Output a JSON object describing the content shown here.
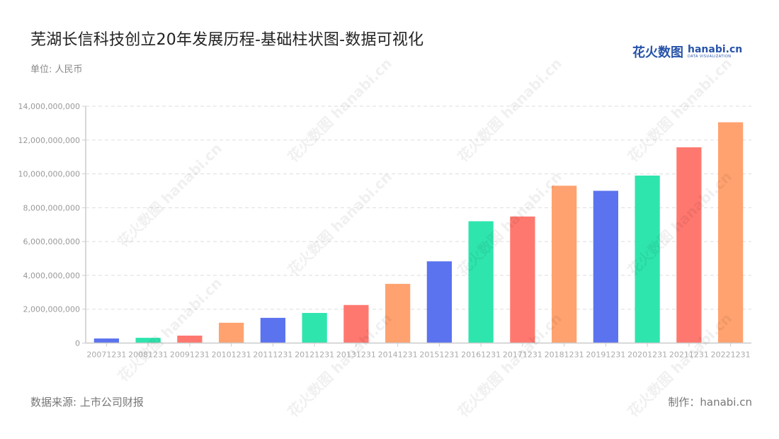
{
  "header": {
    "title": "芜湖长信科技创立20年发展历程-基础柱状图-数据可视化",
    "unit": "单位: 人民币"
  },
  "logo": {
    "cn": "花火数图",
    "en": "hanabi.cn",
    "tagline": "DATA VISUALIZATION"
  },
  "footer": {
    "source": "数据来源: 上市公司财报",
    "credit": "制作：hanabi.cn"
  },
  "watermark": "花火数图 hanabi.cn",
  "colors": [
    "#5B73EE",
    "#2EE5AE",
    "#FF786F",
    "#FFA26F"
  ],
  "chart_data": {
    "type": "bar",
    "title": "芜湖长信科技创立20年发展历程-基础柱状图-数据可视化",
    "xlabel": "",
    "ylabel": "单位: 人民币",
    "ylim": [
      0,
      14000000000
    ],
    "yticks": [
      0,
      2000000000,
      4000000000,
      6000000000,
      8000000000,
      10000000000,
      12000000000,
      14000000000
    ],
    "ytick_labels": [
      "0",
      "2,000,000,000",
      "4,000,000,000",
      "6,000,000,000",
      "8,000,000,000",
      "10,000,000,000",
      "12,000,000,000",
      "14,000,000,000"
    ],
    "grid": true,
    "legend": null,
    "categories": [
      "20071231",
      "20081231",
      "20091231",
      "20101231",
      "20111231",
      "20121231",
      "20131231",
      "20141231",
      "20151231",
      "20161231",
      "20171231",
      "20181231",
      "20191231",
      "20201231",
      "20211231",
      "20221231"
    ],
    "values": [
      270000000,
      310000000,
      440000000,
      1200000000,
      1490000000,
      1780000000,
      2250000000,
      3500000000,
      4830000000,
      7200000000,
      7480000000,
      9300000000,
      9000000000,
      9900000000,
      11570000000,
      13050000000
    ]
  }
}
